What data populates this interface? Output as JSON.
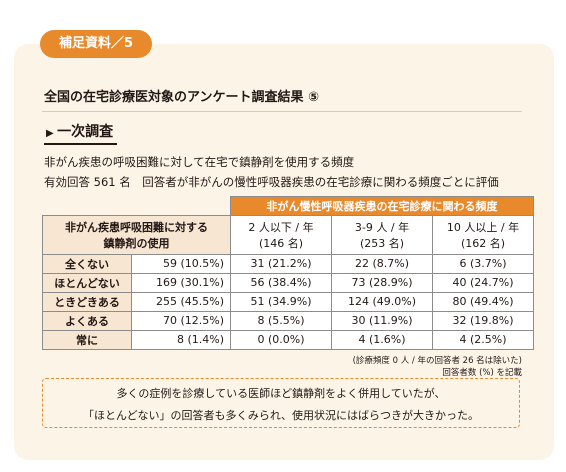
{
  "tag": "補足資料／5",
  "title": "全国の在宅診療医対象のアンケート調査結果 ⑤",
  "section": "一次調査",
  "description": [
    "非がん疾患の呼吸困難に対して在宅で鎮静剤を使用する頻度",
    "有効回答 561 名　回答者が非がんの慢性呼吸器疾患の在宅診療に関わる頻度ごとに評価"
  ],
  "table": {
    "group_header": "非がん慢性呼吸器疾患の在宅診療に関わる頻度",
    "row_header": [
      "非がん疾患呼吸困難に対する",
      "鎮静剤の使用"
    ],
    "columns": [
      [
        "2 人以下 / 年",
        "(146 名)"
      ],
      [
        "3-9 人 / 年",
        "(253 名)"
      ],
      [
        "10 人以上 / 年",
        "(162 名)"
      ]
    ],
    "rows": [
      [
        "全くない",
        "59 (10.5%)",
        "31 (21.2%)",
        "22 (8.7%)",
        "6 (3.7%)"
      ],
      [
        "ほとんどない",
        "169 (30.1%)",
        "56 (38.4%)",
        "73 (28.9%)",
        "40 (24.7%)"
      ],
      [
        "ときどきある",
        "255 (45.5%)",
        "51 (34.9%)",
        "124 (49.0%)",
        "80 (49.4%)"
      ],
      [
        "よくある",
        "70 (12.5%)",
        "8 (5.5%)",
        "30 (11.9%)",
        "32 (19.8%)"
      ],
      [
        "常に",
        "8 (1.4%)",
        "0 (0.0%)",
        "4 (1.6%)",
        "4 (2.5%)"
      ]
    ]
  },
  "notes": [
    "(診療頻度 0 人 / 年の回答者 26 名は除いた)",
    "回答者数 (%) を記載"
  ],
  "callout": [
    "多くの症例を診療している医師ほど鎮静剤をよく併用していたが、",
    "「ほとんどない」の回答者も多くみられ、使用状況にはばらつきが大きかった。"
  ]
}
